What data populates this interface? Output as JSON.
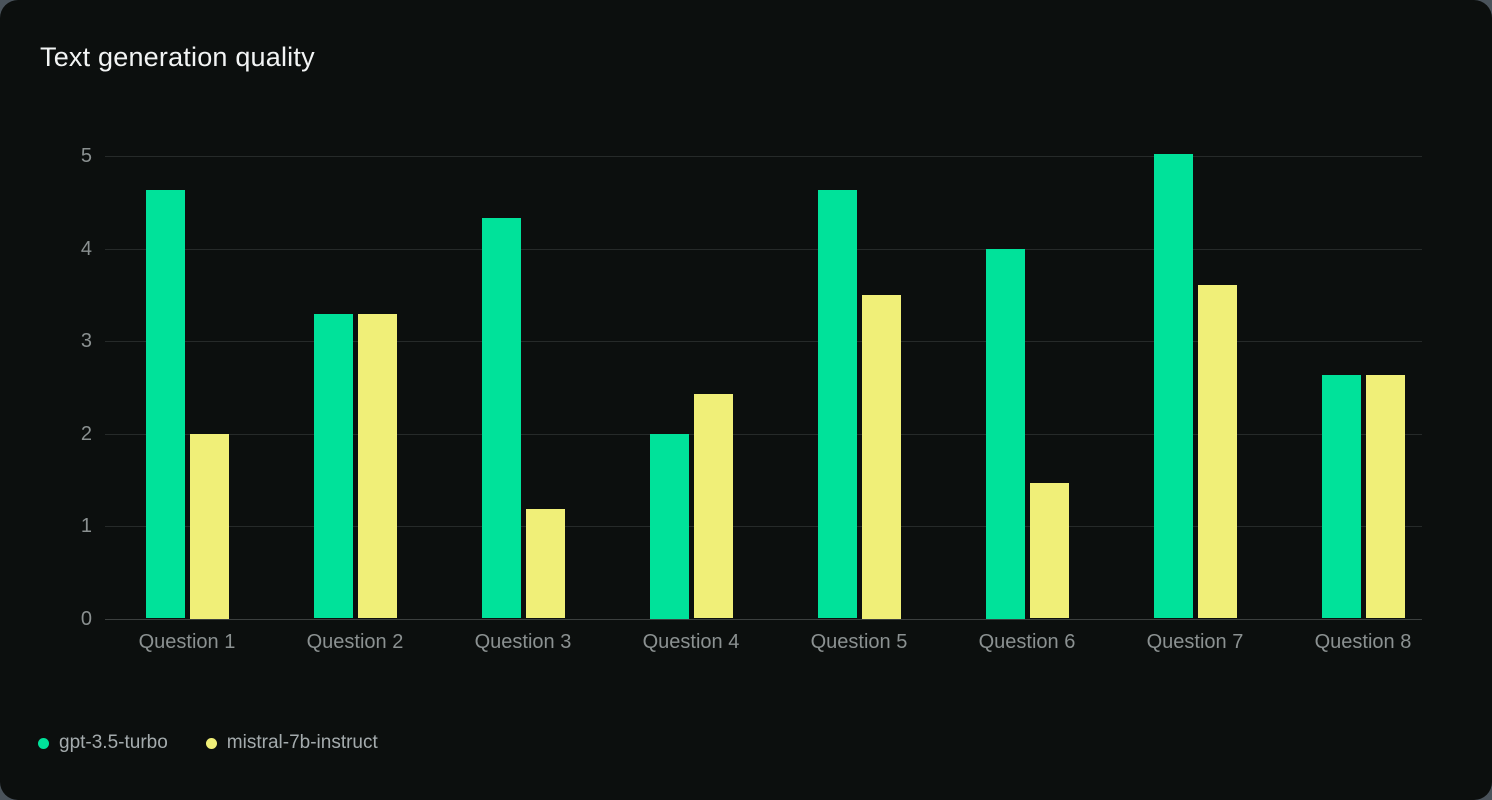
{
  "theme": {
    "page_background": "#4a535b",
    "card_background": "#0c0f0e",
    "gridline_color": "#262a29",
    "baseline_color": "#3c403f",
    "tick_text_color": "#8b9191",
    "title_color": "#f2f4f4",
    "legend_text_color": "#a4abad"
  },
  "chart_data": {
    "type": "bar",
    "title": "Text generation quality",
    "categories": [
      "Question 1",
      "Question 2",
      "Question 3",
      "Question 4",
      "Question 5",
      "Question 6",
      "Question 7",
      "Question 8"
    ],
    "series": [
      {
        "name": "gpt-3.5-turbo",
        "color": "#00e29a",
        "values": [
          4.63,
          3.29,
          4.33,
          2.0,
          4.63,
          4.0,
          5.02,
          2.63
        ]
      },
      {
        "name": "mistral-7b-instruct",
        "color": "#f0ef78",
        "values": [
          2.0,
          3.29,
          1.18,
          2.43,
          3.5,
          1.47,
          3.61,
          2.63
        ]
      }
    ],
    "xlabel": "",
    "ylabel": "",
    "ylim": [
      0,
      5
    ],
    "yticks": [
      0,
      1,
      2,
      3,
      4,
      5
    ],
    "grid": true,
    "legend_position": "bottom-left"
  }
}
